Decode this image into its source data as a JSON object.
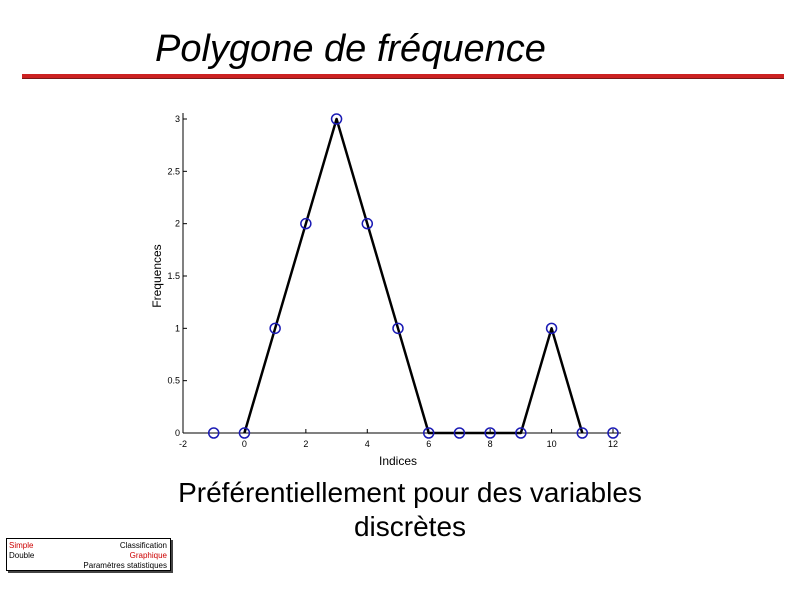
{
  "slide": {
    "title": "Polygone de fréquence",
    "caption": "Préférentiellement pour des variables discrètes"
  },
  "navigation": {
    "left_items": [
      {
        "label": "Simple",
        "active": true
      },
      {
        "label": "Double",
        "active": false
      }
    ],
    "right_items": [
      {
        "label": "Classification",
        "active": false
      },
      {
        "label": "Graphique",
        "active": true
      },
      {
        "label": "Paramètres statistiques",
        "active": false
      }
    ]
  },
  "colors": {
    "rule": "#cc2222",
    "marker": "#1a1ab4",
    "line": "#000000",
    "nav_active": "#cc0000"
  },
  "chart_data": {
    "type": "line",
    "xlabel": "Indices",
    "ylabel": "Frequences",
    "xlim": [
      -2,
      12
    ],
    "ylim": [
      0,
      3
    ],
    "xticks": [
      -2,
      0,
      2,
      4,
      6,
      8,
      10,
      12
    ],
    "yticks": [
      0,
      0.5,
      1,
      1.5,
      2,
      2.5,
      3
    ],
    "grid": false,
    "legend": "none",
    "series": [
      {
        "line_x": [
          0,
          1,
          2,
          3,
          4,
          5,
          6,
          7,
          8,
          9,
          10,
          11
        ],
        "line_y": [
          0,
          1,
          2,
          3,
          2,
          1,
          0,
          0,
          0,
          0,
          1,
          0
        ],
        "marker_x": [
          -1,
          0,
          1,
          2,
          3,
          4,
          5,
          6,
          7,
          8,
          9,
          10,
          11,
          12
        ],
        "marker_y": [
          0,
          0,
          1,
          2,
          3,
          2,
          1,
          0,
          0,
          0,
          0,
          1,
          0,
          0
        ]
      }
    ]
  }
}
